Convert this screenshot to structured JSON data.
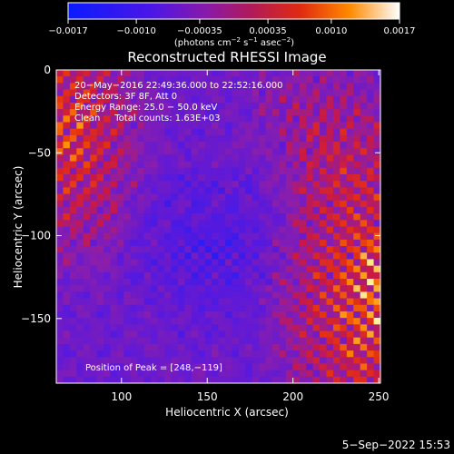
{
  "chart_data": {
    "type": "heatmap",
    "title": "Reconstructed RHESSI Image",
    "xlabel": "Heliocentric X (arcsec)",
    "ylabel": "Heliocentric Y (arcsec)",
    "xlim": [
      62,
      251
    ],
    "ylim": [
      -189,
      0
    ],
    "x_ticks": [
      100,
      150,
      200,
      250
    ],
    "y_ticks": [
      0,
      -50,
      -100,
      -150
    ],
    "x_tick_labels": [
      "100",
      "150",
      "200",
      "250"
    ],
    "y_tick_labels": [
      "0",
      "−50",
      "−100",
      "−150"
    ],
    "colorbar": {
      "min": -0.0017,
      "max": 0.0017,
      "ticks": [
        -0.0017,
        -0.001,
        -0.00035,
        0.00035,
        0.001,
        0.0017
      ],
      "tick_labels": [
        "−0.0017",
        "−0.0010",
        "−0.00035",
        "0.00035",
        "0.0010",
        "0.0017"
      ],
      "units_prefix": "(photons cm",
      "units_exp1": "−2",
      "units_mid": " s",
      "units_exp2": "−1",
      "units_mid2": " asec",
      "units_exp3": "−2",
      "units_suffix": ")"
    },
    "annotations": {
      "time_range": "20−May−2016 22:49:36.000 to 22:52:16.000",
      "detectors": "Detectors: 3F 8F, Att 0",
      "energy_range": "Energy Range: 25.0 − 50.0 keV",
      "method_counts": "Clean     Total counts: 1.63E+03",
      "peak_position": "Position of Peak = [248,−119]"
    },
    "peak": {
      "x": 248,
      "y": -119
    },
    "colors": {
      "low": "#1e1cff",
      "mid_low": "#6a1fd0",
      "mid": "#9a1ea0",
      "mid_high": "#d61f2a",
      "high": "#ff7a00",
      "max": "#fff5a0"
    }
  },
  "footer": {
    "timestamp": "5−Sep−2022 15:53"
  }
}
